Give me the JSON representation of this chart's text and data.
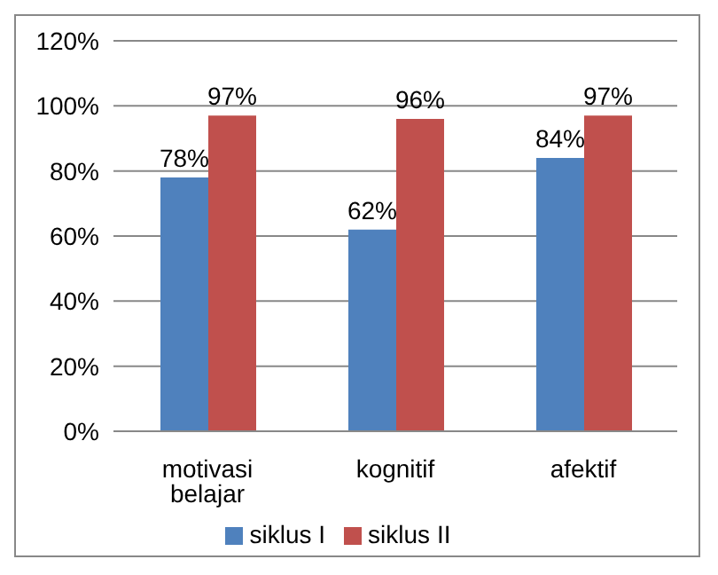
{
  "chart_data": {
    "type": "bar",
    "categories": [
      "motivasi belajar",
      "kognitif",
      "afektif"
    ],
    "series": [
      {
        "name": "siklus I",
        "color": "#4f81bd",
        "values": [
          78,
          62,
          84
        ],
        "value_labels": [
          "78%",
          "62%",
          "84%"
        ]
      },
      {
        "name": "siklus II",
        "color": "#c0504d",
        "values": [
          97,
          96,
          97
        ],
        "value_labels": [
          "97%",
          "96%",
          "97%"
        ]
      }
    ],
    "ylim": [
      0,
      120
    ],
    "yticks": [
      {
        "value": 0,
        "label": "0%"
      },
      {
        "value": 20,
        "label": "20%"
      },
      {
        "value": 40,
        "label": "40%"
      },
      {
        "value": 60,
        "label": "60%"
      },
      {
        "value": 80,
        "label": "80%"
      },
      {
        "value": 100,
        "label": "100%"
      },
      {
        "value": 120,
        "label": "120%"
      }
    ],
    "grid": "y",
    "legend": "bottom"
  }
}
